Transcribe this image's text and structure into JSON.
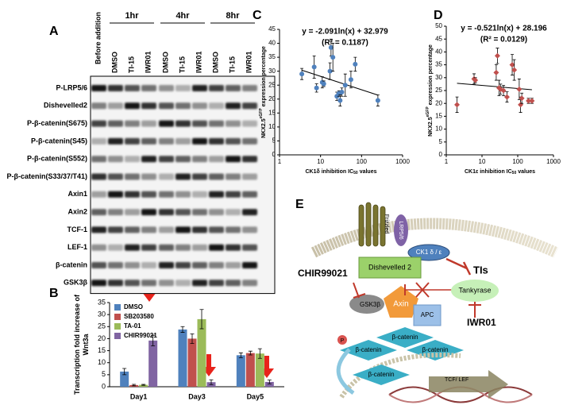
{
  "panel_labels": [
    "A",
    "B",
    "C",
    "D",
    "E"
  ],
  "blot": {
    "before": "Before addition",
    "groups": [
      {
        "name": "1hr",
        "lanes": [
          "DMSO",
          "TI-15",
          "IWR01"
        ]
      },
      {
        "name": "4hr",
        "lanes": [
          "DMSO",
          "TI-15",
          "IWR01"
        ]
      },
      {
        "name": "8hr",
        "lanes": [
          "DMSO",
          "TI-15",
          "IWR01"
        ]
      }
    ],
    "rows": [
      "P-LRP5/6",
      "Dishevelled2",
      "P-β-catenin(S675)",
      "P-β-catenin(S45)",
      "P-β-catenin(S552)",
      "P-β-catenin(S33/37/T41)",
      "Axin1",
      "Axin2",
      "TCF-1",
      "LEF-1",
      "β-catenin",
      "GSK3β"
    ]
  },
  "chart_data": [
    {
      "type": "bar",
      "ylabel": [
        "Transcription fold increase of",
        "Wnt3a"
      ],
      "categories": [
        "Day1",
        "Day3",
        "Day5"
      ],
      "series": [
        {
          "name": "DMSO",
          "color": "#4f81bd",
          "values": [
            6.3,
            23.8,
            13.1
          ],
          "errors": [
            1.3,
            1.2,
            1.0
          ]
        },
        {
          "name": "SB203580",
          "color": "#c0504d",
          "values": [
            0.7,
            20.0,
            14.0
          ],
          "errors": [
            0.3,
            2.0,
            0.8
          ]
        },
        {
          "name": "TA-01",
          "color": "#9bbb59",
          "values": [
            0.8,
            28.1,
            13.8
          ],
          "errors": [
            0.2,
            4.0,
            2.0
          ]
        },
        {
          "name": "CHIR99021",
          "color": "#8064a2",
          "values": [
            19.2,
            1.9,
            2.0
          ],
          "errors": [
            2.2,
            1.0,
            0.8
          ]
        }
      ],
      "ylim": [
        0,
        35
      ],
      "yticks": [
        0,
        5,
        10,
        15,
        20,
        25,
        30,
        35
      ],
      "legend": "top-left"
    },
    {
      "type": "scatter",
      "title": "y = -2.091ln(x) + 32.979",
      "subtitle": "(R² = 0.1187)",
      "ylabel": {
        "main": "NKX2.5",
        "sup": "eGFP",
        "rest": "expression percentage"
      },
      "xlabel": {
        "main": "CK1δ inhibition IC",
        "sub": "50",
        "rest": "values"
      },
      "log_x": true,
      "color": "#4f81bd",
      "marker": "circle",
      "trendline": {
        "slope": -2.091,
        "intercept": 32.979
      },
      "x": [
        3.5,
        7,
        8,
        11,
        12,
        17,
        18,
        20,
        25,
        28,
        30,
        33,
        40,
        55,
        70,
        250
      ],
      "values": [
        29,
        31.5,
        24,
        26,
        25.5,
        30,
        38.5,
        35,
        21,
        22,
        19.5,
        22.5,
        25,
        27,
        32.5,
        19.5
      ],
      "errors": [
        2,
        4,
        1.5,
        2,
        1,
        3,
        3,
        5,
        1.5,
        1,
        2,
        1.5,
        4,
        3,
        2.5,
        2
      ],
      "xlim": [
        1,
        1000
      ],
      "xticks": [
        1,
        10,
        100,
        1000
      ],
      "ylim": [
        0,
        45
      ],
      "yticks": [
        0,
        5,
        10,
        15,
        20,
        25,
        30,
        35,
        40,
        45
      ]
    },
    {
      "type": "scatter",
      "title": "y = -0.521ln(x) + 28.196",
      "subtitle": "(R² = 0.0129)",
      "ylabel": {
        "main": "NKX2.5",
        "sup": "eGFP",
        "rest": "expression percentage"
      },
      "xlabel": {
        "main": "CK1ε inhibition IC",
        "sub": "50",
        "rest": "values"
      },
      "log_x": true,
      "color": "#c0504d",
      "marker": "diamond",
      "trendline": {
        "slope": -0.521,
        "intercept": 28.196
      },
      "x": [
        2,
        6,
        6.5,
        25,
        27,
        30,
        33,
        40,
        50,
        70,
        80,
        110,
        120,
        130,
        200,
        250
      ],
      "values": [
        19.5,
        29.5,
        29,
        32,
        38.5,
        26,
        25.5,
        25,
        22.5,
        35,
        33,
        25.5,
        19.5,
        22,
        21,
        21
      ],
      "errors": [
        3,
        2,
        1,
        3,
        3,
        3,
        2,
        2,
        2,
        4,
        4,
        4,
        3,
        2,
        1,
        1
      ],
      "xlim": [
        1,
        1000
      ],
      "xticks": [
        1,
        10,
        100,
        1000
      ],
      "ylim": [
        0,
        50
      ],
      "yticks": [
        0,
        5,
        10,
        15,
        20,
        25,
        30,
        35,
        40,
        45,
        50
      ]
    }
  ],
  "diagram": {
    "frizzled": "Frizzled",
    "lrp": "LRP5/6",
    "ck1": "CK1 δ / ε",
    "tis": "TIs",
    "dishevelled": "Dishevelled 2",
    "chir": "CHIR99021",
    "gsk": "GSK3β",
    "axin": "Axin",
    "apc": "APC",
    "tankyrase": "Tankyrase",
    "iwr": "IWR01",
    "p": "P",
    "beta_catenin": [
      "β-catenin",
      "β-catenin",
      "β-catenin",
      "β-catenin"
    ],
    "tcf": "TCF/ LEF"
  }
}
